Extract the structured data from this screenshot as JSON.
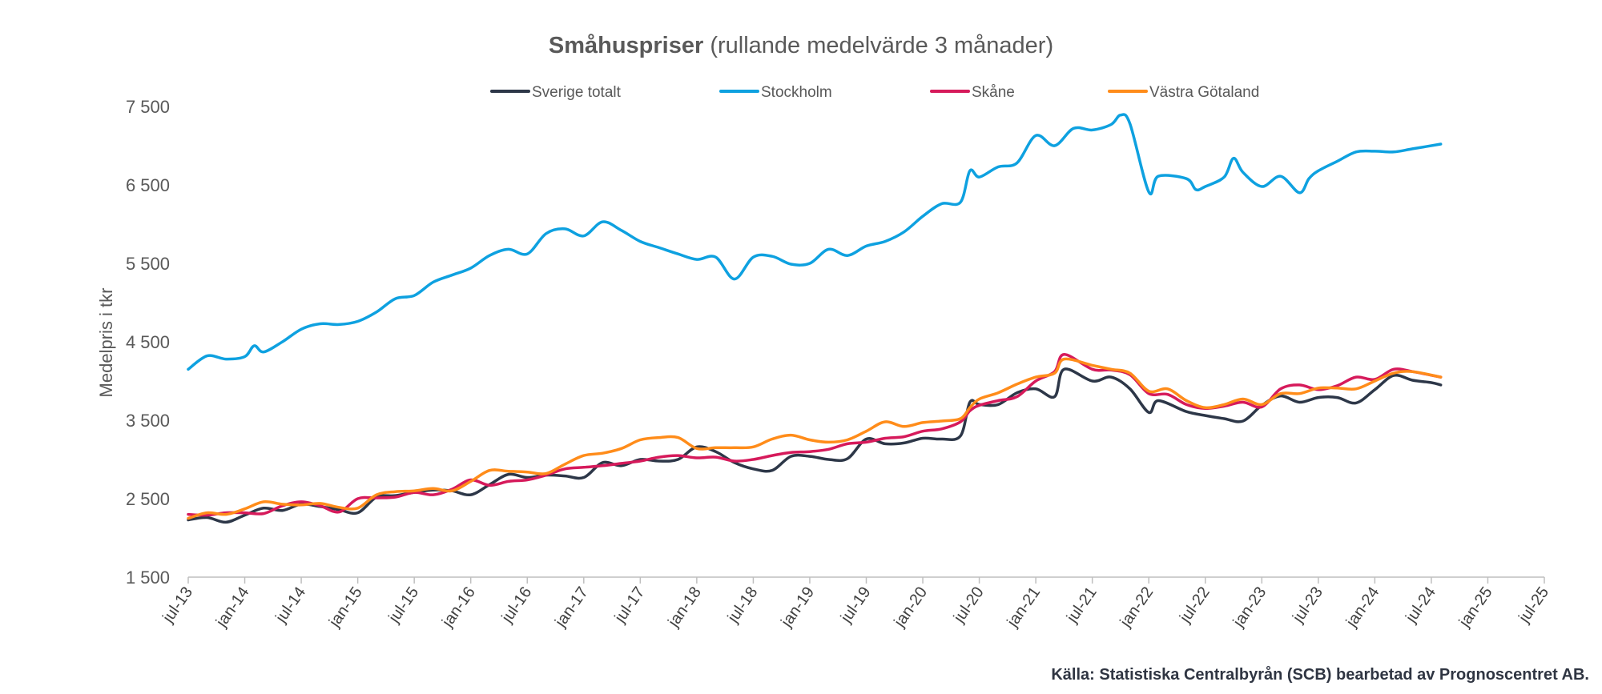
{
  "chart_data": {
    "type": "line",
    "title_bold": "Småhuspriser",
    "title_rest": " (rullande medelvärde 3 månader)",
    "xlabel": "",
    "ylabel": "Medelpris i tkr",
    "ylim": [
      1500,
      7500
    ],
    "yticks": [
      1500,
      2500,
      3500,
      4500,
      5500,
      6500,
      7500
    ],
    "ytick_labels": [
      "1 500",
      "2 500",
      "3 500",
      "4 500",
      "5 500",
      "6 500",
      "7 500"
    ],
    "x_range_months": [
      0,
      144
    ],
    "xticks_months": [
      0,
      6,
      12,
      18,
      24,
      30,
      36,
      42,
      48,
      54,
      60,
      66,
      72,
      78,
      84,
      90,
      96,
      102,
      108,
      114,
      120,
      126,
      132,
      138,
      144
    ],
    "xtick_labels": [
      "jul-13",
      "jan-14",
      "jul-14",
      "jan-15",
      "jul-15",
      "jan-16",
      "jul-16",
      "jan-17",
      "jul-17",
      "jan-18",
      "jul-18",
      "jan-19",
      "jul-19",
      "jan-20",
      "jul-20",
      "jan-21",
      "jul-21",
      "jan-22",
      "jul-22",
      "jan-23",
      "jul-23",
      "jan-24",
      "jul-24",
      "jan-25",
      "jul-25"
    ],
    "grid": false,
    "legend_position": "top-center",
    "series": [
      {
        "name": "Sverige totalt",
        "color": "#2d3748",
        "points": [
          [
            0,
            2230
          ],
          [
            2,
            2260
          ],
          [
            4,
            2200
          ],
          [
            6,
            2290
          ],
          [
            8,
            2380
          ],
          [
            10,
            2350
          ],
          [
            12,
            2430
          ],
          [
            14,
            2400
          ],
          [
            16,
            2360
          ],
          [
            18,
            2320
          ],
          [
            20,
            2520
          ],
          [
            22,
            2540
          ],
          [
            24,
            2580
          ],
          [
            26,
            2610
          ],
          [
            28,
            2600
          ],
          [
            30,
            2550
          ],
          [
            32,
            2680
          ],
          [
            34,
            2810
          ],
          [
            36,
            2770
          ],
          [
            38,
            2800
          ],
          [
            40,
            2790
          ],
          [
            42,
            2770
          ],
          [
            44,
            2960
          ],
          [
            46,
            2920
          ],
          [
            48,
            3000
          ],
          [
            50,
            2980
          ],
          [
            52,
            3000
          ],
          [
            54,
            3160
          ],
          [
            56,
            3100
          ],
          [
            58,
            2960
          ],
          [
            60,
            2880
          ],
          [
            62,
            2860
          ],
          [
            64,
            3040
          ],
          [
            66,
            3040
          ],
          [
            68,
            3000
          ],
          [
            70,
            3010
          ],
          [
            72,
            3260
          ],
          [
            74,
            3200
          ],
          [
            76,
            3210
          ],
          [
            78,
            3270
          ],
          [
            80,
            3260
          ],
          [
            82,
            3300
          ],
          [
            83,
            3730
          ],
          [
            84,
            3700
          ],
          [
            86,
            3700
          ],
          [
            88,
            3850
          ],
          [
            90,
            3900
          ],
          [
            92,
            3800
          ],
          [
            93,
            4150
          ],
          [
            96,
            4000
          ],
          [
            98,
            4050
          ],
          [
            100,
            3900
          ],
          [
            102,
            3600
          ],
          [
            103,
            3750
          ],
          [
            106,
            3610
          ],
          [
            108,
            3560
          ],
          [
            110,
            3520
          ],
          [
            112,
            3490
          ],
          [
            114,
            3690
          ],
          [
            116,
            3810
          ],
          [
            118,
            3730
          ],
          [
            120,
            3790
          ],
          [
            122,
            3790
          ],
          [
            124,
            3720
          ],
          [
            126,
            3890
          ],
          [
            128,
            4070
          ],
          [
            130,
            4010
          ],
          [
            132,
            3980
          ],
          [
            133,
            3950
          ]
        ]
      },
      {
        "name": "Stockholm",
        "color": "#0ea1e0",
        "points": [
          [
            0,
            4150
          ],
          [
            2,
            4320
          ],
          [
            4,
            4280
          ],
          [
            6,
            4310
          ],
          [
            7,
            4450
          ],
          [
            8,
            4370
          ],
          [
            10,
            4500
          ],
          [
            12,
            4660
          ],
          [
            14,
            4730
          ],
          [
            16,
            4720
          ],
          [
            18,
            4760
          ],
          [
            20,
            4880
          ],
          [
            22,
            5050
          ],
          [
            24,
            5090
          ],
          [
            26,
            5260
          ],
          [
            28,
            5350
          ],
          [
            30,
            5440
          ],
          [
            32,
            5600
          ],
          [
            34,
            5680
          ],
          [
            36,
            5620
          ],
          [
            38,
            5880
          ],
          [
            40,
            5940
          ],
          [
            42,
            5850
          ],
          [
            44,
            6030
          ],
          [
            46,
            5920
          ],
          [
            48,
            5780
          ],
          [
            50,
            5700
          ],
          [
            52,
            5620
          ],
          [
            54,
            5550
          ],
          [
            56,
            5580
          ],
          [
            58,
            5300
          ],
          [
            60,
            5580
          ],
          [
            62,
            5590
          ],
          [
            64,
            5490
          ],
          [
            66,
            5500
          ],
          [
            68,
            5680
          ],
          [
            70,
            5600
          ],
          [
            72,
            5720
          ],
          [
            74,
            5780
          ],
          [
            76,
            5900
          ],
          [
            78,
            6100
          ],
          [
            80,
            6260
          ],
          [
            82,
            6280
          ],
          [
            83,
            6680
          ],
          [
            84,
            6600
          ],
          [
            86,
            6730
          ],
          [
            88,
            6780
          ],
          [
            90,
            7130
          ],
          [
            92,
            7000
          ],
          [
            94,
            7220
          ],
          [
            96,
            7200
          ],
          [
            98,
            7270
          ],
          [
            99,
            7390
          ],
          [
            100,
            7280
          ],
          [
            102,
            6410
          ],
          [
            103,
            6610
          ],
          [
            106,
            6580
          ],
          [
            107,
            6440
          ],
          [
            108,
            6480
          ],
          [
            110,
            6600
          ],
          [
            111,
            6840
          ],
          [
            112,
            6660
          ],
          [
            114,
            6480
          ],
          [
            116,
            6610
          ],
          [
            118,
            6400
          ],
          [
            119,
            6580
          ],
          [
            120,
            6680
          ],
          [
            122,
            6800
          ],
          [
            124,
            6920
          ],
          [
            126,
            6930
          ],
          [
            128,
            6920
          ],
          [
            130,
            6960
          ],
          [
            133,
            7020
          ]
        ]
      },
      {
        "name": "Skåne",
        "color": "#d61a5b",
        "points": [
          [
            0,
            2300
          ],
          [
            2,
            2290
          ],
          [
            4,
            2320
          ],
          [
            6,
            2320
          ],
          [
            8,
            2310
          ],
          [
            10,
            2410
          ],
          [
            12,
            2460
          ],
          [
            14,
            2410
          ],
          [
            16,
            2330
          ],
          [
            18,
            2500
          ],
          [
            20,
            2510
          ],
          [
            22,
            2520
          ],
          [
            24,
            2580
          ],
          [
            26,
            2550
          ],
          [
            28,
            2620
          ],
          [
            30,
            2740
          ],
          [
            32,
            2670
          ],
          [
            34,
            2720
          ],
          [
            36,
            2740
          ],
          [
            38,
            2800
          ],
          [
            40,
            2880
          ],
          [
            42,
            2900
          ],
          [
            44,
            2920
          ],
          [
            46,
            2950
          ],
          [
            48,
            2980
          ],
          [
            50,
            3030
          ],
          [
            52,
            3050
          ],
          [
            54,
            3020
          ],
          [
            56,
            3030
          ],
          [
            58,
            2980
          ],
          [
            60,
            3000
          ],
          [
            62,
            3050
          ],
          [
            64,
            3090
          ],
          [
            66,
            3100
          ],
          [
            68,
            3130
          ],
          [
            70,
            3200
          ],
          [
            72,
            3220
          ],
          [
            74,
            3270
          ],
          [
            76,
            3290
          ],
          [
            78,
            3360
          ],
          [
            80,
            3390
          ],
          [
            82,
            3480
          ],
          [
            83,
            3620
          ],
          [
            84,
            3690
          ],
          [
            86,
            3750
          ],
          [
            88,
            3800
          ],
          [
            90,
            4000
          ],
          [
            92,
            4120
          ],
          [
            93,
            4340
          ],
          [
            96,
            4150
          ],
          [
            98,
            4140
          ],
          [
            100,
            4080
          ],
          [
            102,
            3840
          ],
          [
            104,
            3830
          ],
          [
            106,
            3700
          ],
          [
            108,
            3650
          ],
          [
            110,
            3680
          ],
          [
            112,
            3730
          ],
          [
            114,
            3670
          ],
          [
            116,
            3900
          ],
          [
            118,
            3950
          ],
          [
            120,
            3890
          ],
          [
            122,
            3940
          ],
          [
            124,
            4050
          ],
          [
            126,
            4020
          ],
          [
            128,
            4150
          ],
          [
            130,
            4120
          ],
          [
            133,
            4050
          ]
        ]
      },
      {
        "name": "Västra Götaland",
        "color": "#ff8c1a",
        "points": [
          [
            0,
            2250
          ],
          [
            2,
            2320
          ],
          [
            4,
            2300
          ],
          [
            6,
            2370
          ],
          [
            8,
            2460
          ],
          [
            10,
            2430
          ],
          [
            12,
            2420
          ],
          [
            14,
            2440
          ],
          [
            16,
            2390
          ],
          [
            18,
            2380
          ],
          [
            20,
            2550
          ],
          [
            22,
            2590
          ],
          [
            24,
            2600
          ],
          [
            26,
            2630
          ],
          [
            28,
            2600
          ],
          [
            30,
            2720
          ],
          [
            32,
            2860
          ],
          [
            34,
            2850
          ],
          [
            36,
            2840
          ],
          [
            38,
            2820
          ],
          [
            40,
            2940
          ],
          [
            42,
            3050
          ],
          [
            44,
            3080
          ],
          [
            46,
            3140
          ],
          [
            48,
            3250
          ],
          [
            50,
            3280
          ],
          [
            52,
            3280
          ],
          [
            54,
            3140
          ],
          [
            56,
            3150
          ],
          [
            58,
            3150
          ],
          [
            60,
            3160
          ],
          [
            62,
            3260
          ],
          [
            64,
            3310
          ],
          [
            66,
            3250
          ],
          [
            68,
            3220
          ],
          [
            70,
            3250
          ],
          [
            72,
            3360
          ],
          [
            74,
            3480
          ],
          [
            76,
            3420
          ],
          [
            78,
            3470
          ],
          [
            80,
            3490
          ],
          [
            82,
            3520
          ],
          [
            83,
            3660
          ],
          [
            84,
            3770
          ],
          [
            86,
            3850
          ],
          [
            88,
            3960
          ],
          [
            90,
            4050
          ],
          [
            92,
            4100
          ],
          [
            93,
            4280
          ],
          [
            96,
            4200
          ],
          [
            98,
            4150
          ],
          [
            100,
            4100
          ],
          [
            102,
            3870
          ],
          [
            104,
            3900
          ],
          [
            106,
            3750
          ],
          [
            108,
            3660
          ],
          [
            110,
            3700
          ],
          [
            112,
            3770
          ],
          [
            114,
            3700
          ],
          [
            116,
            3840
          ],
          [
            118,
            3840
          ],
          [
            120,
            3910
          ],
          [
            122,
            3910
          ],
          [
            124,
            3900
          ],
          [
            126,
            4000
          ],
          [
            128,
            4100
          ],
          [
            130,
            4120
          ],
          [
            133,
            4050
          ]
        ]
      }
    ]
  },
  "source_text": "Källa: Statistiska Centralbyrån (SCB) bearbetad av Prognoscentret AB."
}
